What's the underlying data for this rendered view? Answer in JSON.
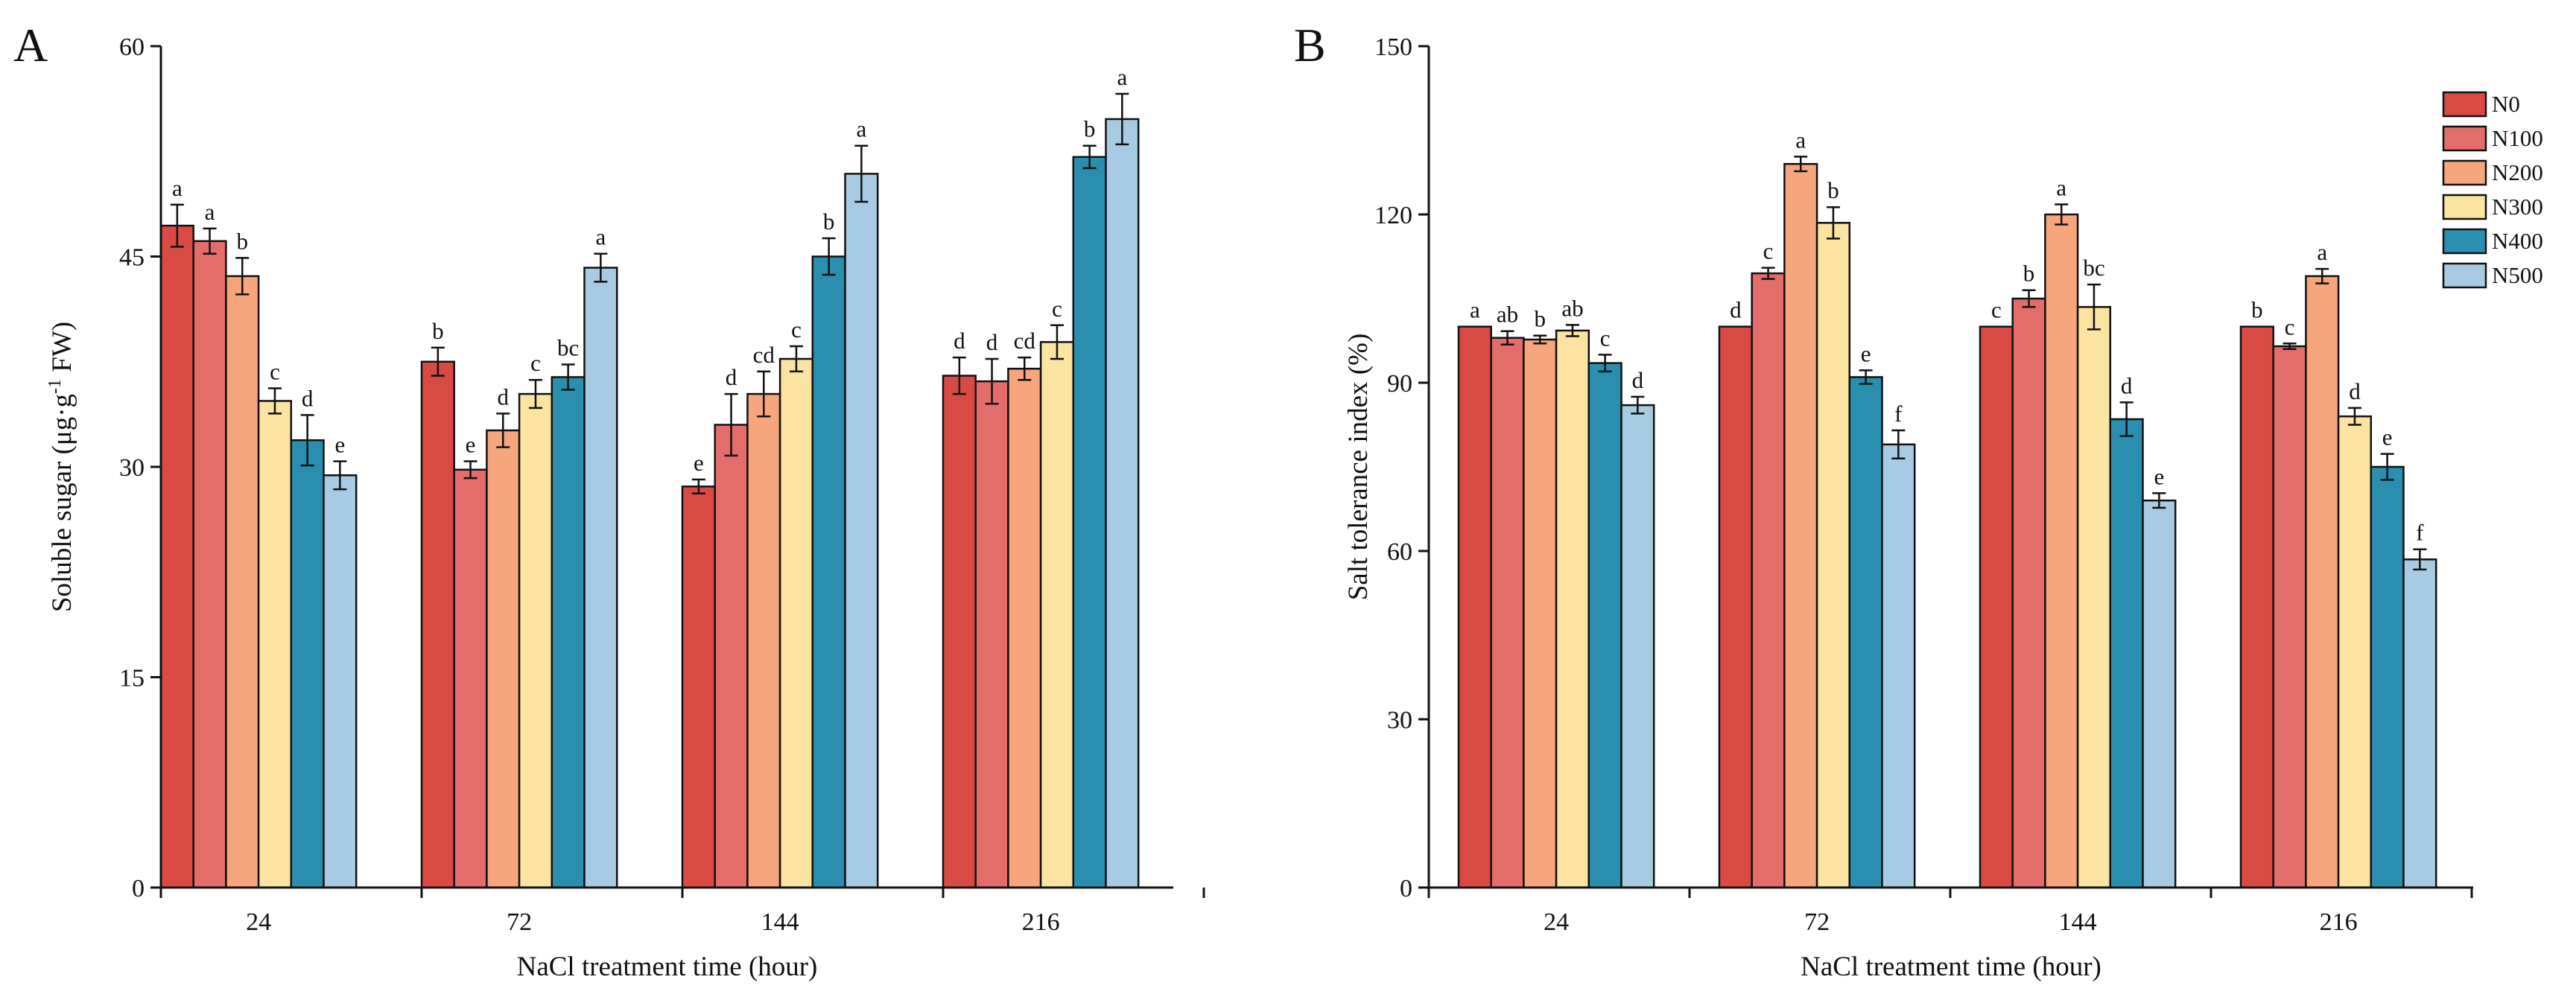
{
  "series_colors": [
    "#d94a45",
    "#e36d6a",
    "#f6a57c",
    "#fbe3a2",
    "#2a8faf",
    "#a6cbe2"
  ],
  "chart_data": [
    {
      "panel": "A",
      "type": "bar",
      "title": "",
      "xlabel": "NaCl treatment time (hour)",
      "ylabel": "Soluble sugar (μg·g-1 FW)",
      "ylabel_main": "Soluble sugar (μg·g",
      "ylabel_sup": "-1",
      "ylabel_end": " FW)",
      "ylim": [
        0,
        60
      ],
      "yticks": [
        0,
        15,
        30,
        45,
        60
      ],
      "grid": false,
      "categories": [
        "24",
        "72",
        "144",
        "216"
      ],
      "series": [
        {
          "name": "N0",
          "values": [
            47.2,
            37.5,
            28.6,
            36.5
          ],
          "errors": [
            1.5,
            1.0,
            0.5,
            1.3
          ],
          "labels": [
            "a",
            "b",
            "e",
            "d"
          ]
        },
        {
          "name": "N100",
          "values": [
            46.1,
            29.8,
            33.0,
            36.1
          ],
          "errors": [
            0.9,
            0.6,
            2.2,
            1.6
          ],
          "labels": [
            "a",
            "e",
            "d",
            "d"
          ]
        },
        {
          "name": "N200",
          "values": [
            43.6,
            32.6,
            35.2,
            37.0
          ],
          "errors": [
            1.3,
            1.2,
            1.6,
            0.8
          ],
          "labels": [
            "b",
            "d",
            "cd",
            "cd"
          ]
        },
        {
          "name": "N300",
          "values": [
            34.7,
            35.2,
            37.7,
            38.9
          ],
          "errors": [
            0.9,
            1.0,
            0.9,
            1.2
          ],
          "labels": [
            "c",
            "c",
            "c",
            "c"
          ]
        },
        {
          "name": "N400",
          "values": [
            31.9,
            36.4,
            45.0,
            52.1
          ],
          "errors": [
            1.8,
            0.9,
            1.3,
            0.8
          ],
          "labels": [
            "d",
            "bc",
            "b",
            "b"
          ]
        },
        {
          "name": "N500",
          "values": [
            29.4,
            44.2,
            50.9,
            54.8
          ],
          "errors": [
            1.0,
            1.0,
            2.0,
            1.8
          ],
          "labels": [
            "e",
            "a",
            "a",
            "a"
          ]
        }
      ]
    },
    {
      "panel": "B",
      "type": "bar",
      "title": "",
      "xlabel": "NaCl treatment time (hour)",
      "ylabel": "Salt tolerance index (%)",
      "ylim": [
        0,
        150
      ],
      "yticks": [
        0,
        30,
        60,
        90,
        120,
        150
      ],
      "grid": false,
      "legend": "top-right",
      "categories": [
        "24",
        "72",
        "144",
        "216"
      ],
      "series": [
        {
          "name": "N0",
          "values": [
            100.0,
            100.0,
            100.0,
            100.0
          ],
          "errors": [
            0,
            0,
            0,
            0
          ],
          "labels": [
            "a",
            "d",
            "c",
            "b"
          ]
        },
        {
          "name": "N100",
          "values": [
            98.0,
            109.5,
            105.0,
            96.5
          ],
          "errors": [
            1.2,
            1.0,
            1.5,
            0.5
          ],
          "labels": [
            "ab",
            "c",
            "b",
            "c"
          ]
        },
        {
          "name": "N200",
          "values": [
            97.7,
            129.0,
            120.0,
            109.0
          ],
          "errors": [
            0.7,
            1.3,
            1.8,
            1.3
          ],
          "labels": [
            "b",
            "a",
            "a",
            "a"
          ]
        },
        {
          "name": "N300",
          "values": [
            99.3,
            118.5,
            103.5,
            84.0
          ],
          "errors": [
            1.0,
            2.8,
            4.0,
            1.5
          ],
          "labels": [
            "ab",
            "b",
            "bc",
            "d"
          ]
        },
        {
          "name": "N400",
          "values": [
            93.5,
            91.0,
            83.5,
            75.0
          ],
          "errors": [
            1.5,
            1.2,
            3.0,
            2.3
          ],
          "labels": [
            "c",
            "e",
            "d",
            "e"
          ]
        },
        {
          "name": "N500",
          "values": [
            86.0,
            79.0,
            69.0,
            58.5
          ],
          "errors": [
            1.5,
            2.5,
            1.3,
            1.8
          ],
          "labels": [
            "d",
            "f",
            "e",
            "f"
          ]
        }
      ]
    }
  ]
}
